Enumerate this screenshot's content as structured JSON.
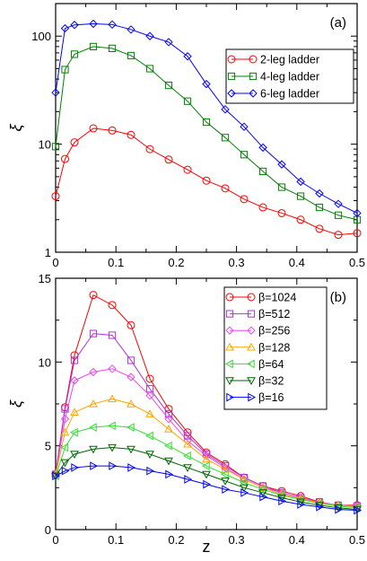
{
  "figure_xlabel": "z",
  "chart_data": [
    {
      "type": "line",
      "panel_label": "(a)",
      "ylabel": "ξ",
      "xlabel": "",
      "yscale": "log",
      "xlim": [
        0,
        0.5
      ],
      "ylim": [
        1,
        200
      ],
      "xticks": [
        "0",
        "0.1",
        "0.2",
        "0.3",
        "0.4",
        "0.5"
      ],
      "xtick_values": [
        0,
        0.1,
        0.2,
        0.3,
        0.4,
        0.5
      ],
      "yticks": [
        "1",
        "10",
        "100"
      ],
      "ytick_values": [
        1,
        10,
        100
      ],
      "legend_position": "top-right",
      "grid": false,
      "series": [
        {
          "name": "2-leg ladder",
          "color": "#ff0000",
          "marker": "circle",
          "x": [
            0.0,
            0.0156,
            0.0313,
            0.0625,
            0.0938,
            0.125,
            0.1563,
            0.1875,
            0.2188,
            0.25,
            0.2813,
            0.3125,
            0.3438,
            0.375,
            0.4063,
            0.4375,
            0.4688,
            0.5
          ],
          "y": [
            3.3,
            7.3,
            10.4,
            14.0,
            13.4,
            12.2,
            9.0,
            7.2,
            5.8,
            4.6,
            3.9,
            3.1,
            2.6,
            2.3,
            2.0,
            1.65,
            1.45,
            1.5
          ]
        },
        {
          "name": "4-leg ladder",
          "color": "#008000",
          "marker": "square",
          "x": [
            0.0,
            0.0156,
            0.0313,
            0.0625,
            0.0938,
            0.125,
            0.1563,
            0.1875,
            0.2188,
            0.25,
            0.2813,
            0.3125,
            0.3438,
            0.375,
            0.4063,
            0.4375,
            0.4688,
            0.5
          ],
          "y": [
            9.5,
            49,
            68,
            80,
            77,
            66,
            50,
            35,
            25,
            16,
            11.5,
            8.0,
            5.6,
            4.0,
            3.3,
            2.6,
            2.2,
            2.0
          ]
        },
        {
          "name": "6-leg ladder",
          "color": "#0000ff",
          "marker": "diamond",
          "x": [
            0.0,
            0.0156,
            0.0313,
            0.0625,
            0.0938,
            0.125,
            0.1563,
            0.1875,
            0.2188,
            0.25,
            0.2813,
            0.3125,
            0.3438,
            0.375,
            0.4063,
            0.4375,
            0.4688,
            0.5
          ],
          "y": [
            30,
            118,
            127,
            130,
            128,
            115,
            100,
            88,
            65,
            36,
            21,
            14.5,
            9.3,
            6.5,
            4.5,
            3.5,
            2.8,
            2.3
          ]
        }
      ]
    },
    {
      "type": "line",
      "panel_label": "(b)",
      "ylabel": "ξ",
      "xlabel": "z",
      "yscale": "linear",
      "xlim": [
        0,
        0.5
      ],
      "ylim": [
        0,
        15
      ],
      "xticks": [
        "0",
        "0.1",
        "0.2",
        "0.3",
        "0.4",
        "0.5"
      ],
      "xtick_values": [
        0,
        0.1,
        0.2,
        0.3,
        0.4,
        0.5
      ],
      "yticks": [
        "0",
        "5",
        "10",
        "15"
      ],
      "ytick_values": [
        0,
        5,
        10,
        15
      ],
      "legend_position": "top-right",
      "grid": false,
      "series": [
        {
          "name": "β=1024",
          "color": "#ff0000",
          "marker": "circle",
          "x": [
            0.0,
            0.0156,
            0.0313,
            0.0625,
            0.0938,
            0.125,
            0.1563,
            0.1875,
            0.2188,
            0.25,
            0.2813,
            0.3125,
            0.3438,
            0.375,
            0.4063,
            0.4375,
            0.4688,
            0.5
          ],
          "y": [
            3.3,
            7.3,
            10.4,
            14.0,
            13.4,
            12.2,
            9.0,
            7.2,
            5.8,
            4.6,
            3.9,
            3.1,
            2.6,
            2.3,
            2.0,
            1.65,
            1.45,
            1.45
          ]
        },
        {
          "name": "β=512",
          "color": "#b030e0",
          "marker": "square",
          "x": [
            0.0,
            0.0156,
            0.0313,
            0.0625,
            0.0938,
            0.125,
            0.1563,
            0.1875,
            0.2188,
            0.25,
            0.2813,
            0.3125,
            0.3438,
            0.375,
            0.4063,
            0.4375,
            0.4688,
            0.5
          ],
          "y": [
            3.3,
            7.2,
            10.1,
            11.7,
            11.6,
            10.1,
            8.4,
            6.9,
            5.6,
            4.5,
            3.8,
            3.1,
            2.6,
            2.2,
            1.9,
            1.65,
            1.45,
            1.4
          ]
        },
        {
          "name": "β=256",
          "color": "#ee44ee",
          "marker": "diamond",
          "x": [
            0.0,
            0.0156,
            0.0313,
            0.0625,
            0.0938,
            0.125,
            0.1563,
            0.1875,
            0.2188,
            0.25,
            0.2813,
            0.3125,
            0.3438,
            0.375,
            0.4063,
            0.4375,
            0.4688,
            0.5
          ],
          "y": [
            3.3,
            6.6,
            8.9,
            9.4,
            9.6,
            9.1,
            8.0,
            6.6,
            5.3,
            4.4,
            3.7,
            3.0,
            2.5,
            2.2,
            1.9,
            1.6,
            1.45,
            1.4
          ]
        },
        {
          "name": "β=128",
          "color": "#ffa500",
          "marker": "triangle-up",
          "x": [
            0.0,
            0.0156,
            0.0313,
            0.0625,
            0.0938,
            0.125,
            0.1563,
            0.1875,
            0.2188,
            0.25,
            0.2813,
            0.3125,
            0.3438,
            0.375,
            0.4063,
            0.4375,
            0.4688,
            0.5
          ],
          "y": [
            3.3,
            5.8,
            7.0,
            7.5,
            7.8,
            7.5,
            6.9,
            6.0,
            5.1,
            4.2,
            3.6,
            3.0,
            2.5,
            2.1,
            1.85,
            1.6,
            1.45,
            1.35
          ]
        },
        {
          "name": "β=64",
          "color": "#33dd33",
          "marker": "triangle-left",
          "x": [
            0.0,
            0.0156,
            0.0313,
            0.0625,
            0.0938,
            0.125,
            0.1563,
            0.1875,
            0.2188,
            0.25,
            0.2813,
            0.3125,
            0.3438,
            0.375,
            0.4063,
            0.4375,
            0.4688,
            0.5
          ],
          "y": [
            3.2,
            4.9,
            5.8,
            6.1,
            6.2,
            6.1,
            5.6,
            5.0,
            4.4,
            3.8,
            3.3,
            2.8,
            2.4,
            2.05,
            1.8,
            1.55,
            1.4,
            1.3
          ]
        },
        {
          "name": "β=32",
          "color": "#006400",
          "marker": "triangle-down",
          "x": [
            0.0,
            0.0156,
            0.0313,
            0.0625,
            0.0938,
            0.125,
            0.1563,
            0.1875,
            0.2188,
            0.25,
            0.2813,
            0.3125,
            0.3438,
            0.375,
            0.4063,
            0.4375,
            0.4688,
            0.5
          ],
          "y": [
            3.2,
            4.0,
            4.5,
            4.8,
            4.9,
            4.8,
            4.5,
            4.1,
            3.7,
            3.3,
            2.9,
            2.5,
            2.2,
            1.9,
            1.65,
            1.45,
            1.3,
            1.2
          ]
        },
        {
          "name": "β=16",
          "color": "#0000ff",
          "marker": "triangle-right",
          "x": [
            0.0,
            0.0156,
            0.0313,
            0.0625,
            0.0938,
            0.125,
            0.1563,
            0.1875,
            0.2188,
            0.25,
            0.2813,
            0.3125,
            0.3438,
            0.375,
            0.4063,
            0.4375,
            0.4688,
            0.5
          ],
          "y": [
            3.2,
            3.5,
            3.7,
            3.8,
            3.8,
            3.7,
            3.5,
            3.3,
            3.0,
            2.7,
            2.4,
            2.2,
            1.95,
            1.7,
            1.5,
            1.35,
            1.2,
            1.15
          ]
        }
      ]
    }
  ]
}
